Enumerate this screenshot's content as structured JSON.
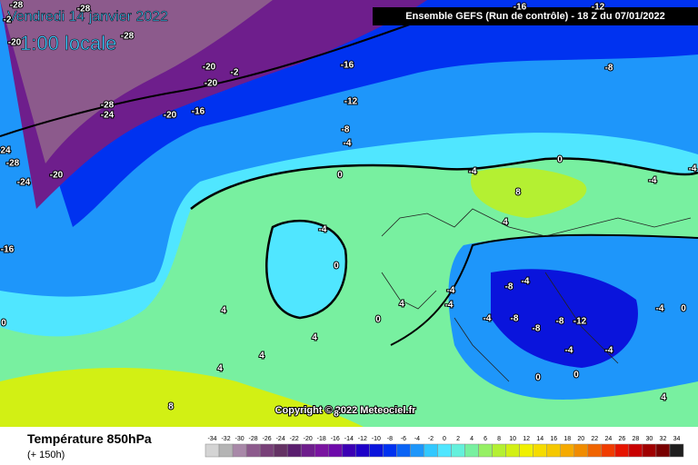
{
  "header": {
    "date": "Vendredi 14 janvier 2022",
    "time": "1:00 locale",
    "run": "Ensemble GEFS  (Run de contrôle)  -  18 Z du 07/01/2022"
  },
  "map": {
    "copyright": "Copyright © 2022 Meteociel.fr",
    "contour_labels": [
      "-28",
      "-2",
      "-20",
      "-28",
      "-28",
      "-20",
      "-2",
      "-20",
      "-16",
      "-28",
      "-24",
      "-20",
      "-16",
      "-12",
      "-8",
      "-4",
      "0",
      "24",
      "-28",
      "-20",
      "-24",
      "-16",
      "0",
      "-8",
      "-16",
      "-12",
      "-4",
      "0",
      "-4",
      "-4",
      "8",
      "4",
      "-4",
      "0",
      "4",
      "4",
      "4",
      "4",
      "4",
      "0",
      "-4",
      "-4",
      "-8",
      "-4",
      "-4",
      "-8",
      "-8",
      "-12",
      "-8",
      "-4",
      "0",
      "-4",
      "-4",
      "0",
      "0",
      "4",
      "8",
      "8"
    ]
  },
  "legend": {
    "title": "Température 850hPa",
    "lead": "(+ 150h)",
    "values": [
      -34,
      -32,
      -30,
      -28,
      -26,
      -24,
      -22,
      -20,
      -18,
      -16,
      -14,
      -12,
      -10,
      -8,
      -6,
      -4,
      -2,
      0,
      2,
      4,
      6,
      8,
      10,
      12,
      14,
      16,
      18,
      20,
      22,
      24,
      26,
      28,
      30,
      32,
      34
    ],
    "colors": [
      "#d4d4d4",
      "#b4b4b4",
      "#a888a8",
      "#8c5a8c",
      "#784078",
      "#643264",
      "#5a1e6e",
      "#6e1e8c",
      "#7a14a0",
      "#6e0aaa",
      "#3c00b4",
      "#1e00c8",
      "#0a14dc",
      "#0032f0",
      "#0a64f5",
      "#1e96fa",
      "#32c8ff",
      "#50e6ff",
      "#64f0dc",
      "#78f0a0",
      "#96f064",
      "#b4f032",
      "#d2f014",
      "#f0f000",
      "#f5dc00",
      "#f5c800",
      "#f5aa00",
      "#f08c00",
      "#f06400",
      "#f03c00",
      "#e61400",
      "#c80000",
      "#a00000",
      "#780000",
      "#1e1e1e"
    ]
  }
}
